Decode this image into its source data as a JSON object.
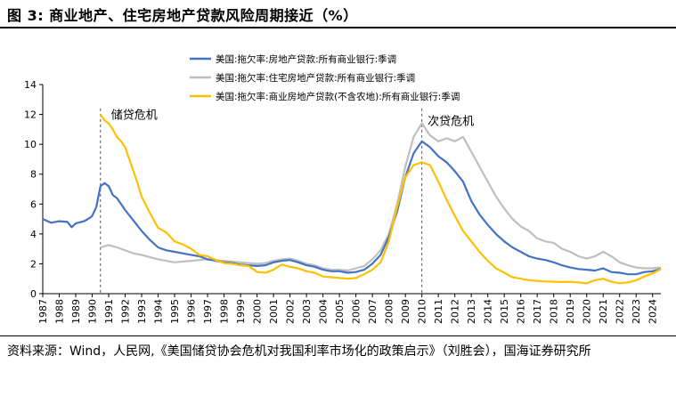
{
  "figure": {
    "title": "图 3:  商业地产、住宅房地产贷款风险周期接近（%）",
    "source": "资料来源：Wind，人民网,《美国储贷协会危机对我国利率市场化的政策启示》（刘胜会），国海证券研究所"
  },
  "chart_data": {
    "type": "line",
    "title": "",
    "xlabel": "",
    "ylabel": "",
    "ylim": [
      0,
      14
    ],
    "yticks": [
      "0",
      "2",
      "4",
      "6",
      "8",
      "10",
      "12",
      "14"
    ],
    "xlim": [
      1987,
      2024.5
    ],
    "xticks": [
      "1987",
      "1988",
      "1989",
      "1990",
      "1991",
      "1992",
      "1993",
      "1994",
      "1995",
      "1996",
      "1997",
      "1998",
      "1999",
      "2000",
      "2001",
      "2002",
      "2003",
      "2004",
      "2005",
      "2006",
      "2007",
      "2008",
      "2009",
      "2010",
      "2011",
      "2012",
      "2013",
      "2014",
      "2015",
      "2016",
      "2017",
      "2018",
      "2019",
      "2020",
      "2021",
      "2022",
      "2023",
      "2024"
    ],
    "grid": false,
    "legend_position": "top",
    "colors": {
      "re": "#4472c4",
      "res": "#bfbfbf",
      "cre": "#ffc000"
    },
    "annotations": [
      {
        "text": "储贷危机",
        "x": 1990.5,
        "y": 11.7
      },
      {
        "text": "次贷危机",
        "x": 2009.7,
        "y": 11.3
      }
    ],
    "vlines": [
      1990.5,
      2010.0
    ],
    "series": [
      {
        "id": "re",
        "name": "美国:拖欠率:房地产贷款:所有商业银行:季调",
        "x": [
          1987.0,
          1987.5,
          1988.0,
          1988.5,
          1988.75,
          1989.0,
          1989.5,
          1989.75,
          1990.0,
          1990.25,
          1990.5,
          1990.75,
          1991.0,
          1991.25,
          1991.5,
          1991.75,
          1992.0,
          1992.5,
          1993.0,
          1993.5,
          1994.0,
          1994.5,
          1995.0,
          1995.5,
          1996.0,
          1996.5,
          1997.0,
          1997.5,
          1998.0,
          1998.5,
          1999.0,
          1999.5,
          2000.0,
          2000.5,
          2001.0,
          2001.5,
          2002.0,
          2002.5,
          2003.0,
          2003.5,
          2004.0,
          2004.5,
          2005.0,
          2005.5,
          2006.0,
          2006.5,
          2007.0,
          2007.5,
          2008.0,
          2008.5,
          2009.0,
          2009.5,
          2010.0,
          2010.5,
          2011.0,
          2011.5,
          2012.0,
          2012.5,
          2013.0,
          2013.5,
          2014.0,
          2014.5,
          2015.0,
          2015.5,
          2016.0,
          2016.5,
          2017.0,
          2017.5,
          2018.0,
          2018.5,
          2019.0,
          2019.5,
          2020.0,
          2020.5,
          2021.0,
          2021.5,
          2022.0,
          2022.5,
          2023.0,
          2023.5,
          2024.0,
          2024.5
        ],
        "values": [
          5.0,
          4.75,
          4.85,
          4.8,
          4.45,
          4.7,
          4.85,
          5.0,
          5.2,
          5.8,
          7.2,
          7.4,
          7.2,
          6.6,
          6.4,
          6.0,
          5.6,
          4.9,
          4.2,
          3.6,
          3.1,
          2.9,
          2.8,
          2.7,
          2.6,
          2.5,
          2.3,
          2.2,
          2.1,
          2.05,
          1.95,
          1.9,
          1.85,
          1.9,
          2.1,
          2.2,
          2.25,
          2.1,
          1.9,
          1.8,
          1.6,
          1.5,
          1.5,
          1.4,
          1.45,
          1.6,
          2.0,
          2.6,
          3.8,
          5.5,
          7.8,
          9.4,
          10.2,
          9.8,
          9.2,
          8.8,
          8.2,
          7.5,
          6.2,
          5.3,
          4.6,
          4.0,
          3.5,
          3.1,
          2.8,
          2.5,
          2.35,
          2.25,
          2.1,
          1.9,
          1.75,
          1.65,
          1.6,
          1.55,
          1.7,
          1.45,
          1.4,
          1.3,
          1.3,
          1.45,
          1.5,
          1.65
        ]
      },
      {
        "id": "res",
        "name": "美国:拖欠率:住宅房地产贷款:所有商业银行:季调",
        "x": [
          1990.5,
          1991.0,
          1991.5,
          1992.0,
          1992.5,
          1993.0,
          1993.5,
          1994.0,
          1994.5,
          1995.0,
          1995.5,
          1996.0,
          1996.5,
          1997.0,
          1997.5,
          1998.0,
          1998.5,
          1999.0,
          1999.5,
          2000.0,
          2000.5,
          2001.0,
          2001.5,
          2002.0,
          2002.5,
          2003.0,
          2003.5,
          2004.0,
          2004.5,
          2005.0,
          2005.5,
          2006.0,
          2006.5,
          2007.0,
          2007.5,
          2008.0,
          2008.5,
          2009.0,
          2009.5,
          2010.0,
          2010.5,
          2011.0,
          2011.5,
          2012.0,
          2012.5,
          2013.0,
          2013.5,
          2014.0,
          2014.5,
          2015.0,
          2015.5,
          2016.0,
          2016.5,
          2017.0,
          2017.5,
          2018.0,
          2018.5,
          2019.0,
          2019.5,
          2020.0,
          2020.5,
          2021.0,
          2021.5,
          2022.0,
          2022.5,
          2023.0,
          2023.5,
          2024.0,
          2024.5
        ],
        "values": [
          3.1,
          3.25,
          3.1,
          2.9,
          2.7,
          2.6,
          2.45,
          2.3,
          2.2,
          2.1,
          2.15,
          2.2,
          2.25,
          2.3,
          2.25,
          2.2,
          2.15,
          2.1,
          2.05,
          2.0,
          2.05,
          2.2,
          2.3,
          2.35,
          2.2,
          2.0,
          1.9,
          1.7,
          1.6,
          1.6,
          1.55,
          1.7,
          1.85,
          2.3,
          2.9,
          4.0,
          6.0,
          8.5,
          10.5,
          11.4,
          10.6,
          10.2,
          10.4,
          10.2,
          10.5,
          9.5,
          8.5,
          7.5,
          6.5,
          5.7,
          5.0,
          4.5,
          4.2,
          3.7,
          3.5,
          3.4,
          3.0,
          2.8,
          2.5,
          2.35,
          2.5,
          2.8,
          2.5,
          2.1,
          1.9,
          1.75,
          1.7,
          1.7,
          1.75
        ]
      },
      {
        "id": "cre",
        "name": "美国:拖欠率:商业房地产贷款(不含农地):所有商业银行:季调",
        "x": [
          1990.5,
          1990.75,
          1991.0,
          1991.25,
          1991.5,
          1991.75,
          1992.0,
          1992.25,
          1992.5,
          1992.75,
          1993.0,
          1993.5,
          1994.0,
          1994.5,
          1995.0,
          1995.5,
          1996.0,
          1996.5,
          1997.0,
          1997.5,
          1998.0,
          1998.5,
          1999.0,
          1999.5,
          2000.0,
          2000.5,
          2001.0,
          2001.5,
          2002.0,
          2002.5,
          2003.0,
          2003.5,
          2004.0,
          2004.5,
          2005.0,
          2005.5,
          2006.0,
          2006.5,
          2007.0,
          2007.5,
          2008.0,
          2008.5,
          2009.0,
          2009.5,
          2010.0,
          2010.25,
          2010.5,
          2011.0,
          2011.5,
          2012.0,
          2012.5,
          2013.0,
          2013.5,
          2014.0,
          2014.5,
          2015.0,
          2015.5,
          2016.0,
          2016.5,
          2017.0,
          2017.5,
          2018.0,
          2018.5,
          2019.0,
          2019.5,
          2020.0,
          2020.5,
          2021.0,
          2021.5,
          2022.0,
          2022.5,
          2023.0,
          2023.5,
          2024.0,
          2024.5
        ],
        "values": [
          12.0,
          11.6,
          11.4,
          11.0,
          10.5,
          10.2,
          9.8,
          9.0,
          8.2,
          7.4,
          6.5,
          5.4,
          4.4,
          4.1,
          3.5,
          3.3,
          3.0,
          2.6,
          2.5,
          2.25,
          2.05,
          2.0,
          1.9,
          1.85,
          1.45,
          1.4,
          1.6,
          1.95,
          1.8,
          1.7,
          1.5,
          1.4,
          1.15,
          1.1,
          1.05,
          1.0,
          1.05,
          1.3,
          1.6,
          2.1,
          3.5,
          5.8,
          7.8,
          8.6,
          8.8,
          8.7,
          8.6,
          7.5,
          6.3,
          5.2,
          4.2,
          3.5,
          2.8,
          2.2,
          1.7,
          1.4,
          1.1,
          1.0,
          0.9,
          0.85,
          0.82,
          0.8,
          0.78,
          0.8,
          0.75,
          0.7,
          0.9,
          1.0,
          0.8,
          0.7,
          0.75,
          0.9,
          1.15,
          1.35,
          1.65
        ]
      }
    ]
  }
}
